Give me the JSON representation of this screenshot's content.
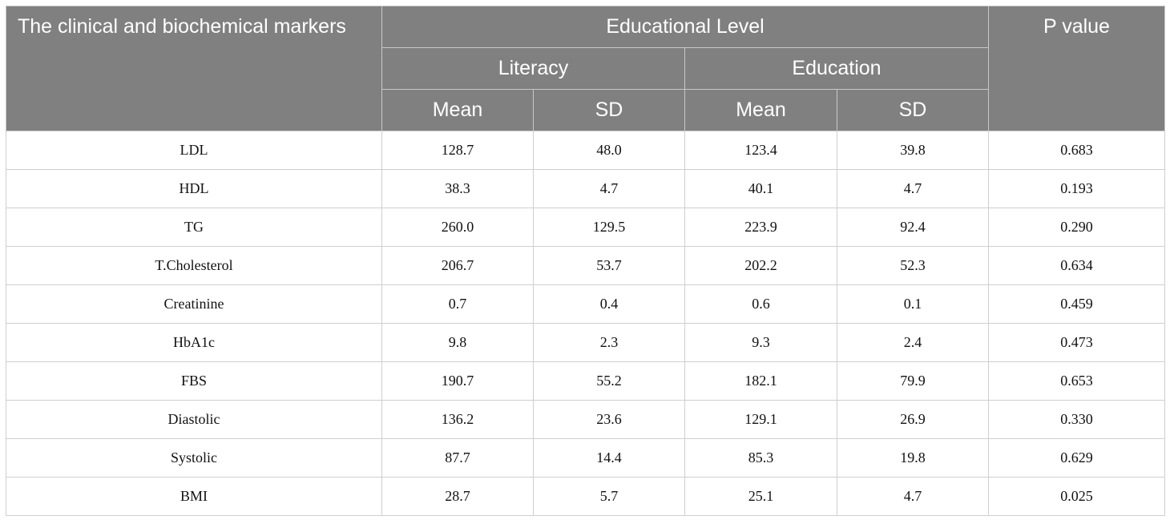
{
  "header": {
    "col_marker": "The clinical and biochemical markers",
    "group": "Educational Level",
    "col_pvalue": "P value",
    "sub_literacy": "Literacy",
    "sub_education": "Education",
    "mean": "Mean",
    "sd": "SD"
  },
  "rows": [
    {
      "marker": "LDL",
      "lit_mean": "128.7",
      "lit_sd": "48.0",
      "edu_mean": "123.4",
      "edu_sd": "39.8",
      "p": "0.683"
    },
    {
      "marker": "HDL",
      "lit_mean": "38.3",
      "lit_sd": "4.7",
      "edu_mean": "40.1",
      "edu_sd": "4.7",
      "p": "0.193"
    },
    {
      "marker": "TG",
      "lit_mean": "260.0",
      "lit_sd": "129.5",
      "edu_mean": "223.9",
      "edu_sd": "92.4",
      "p": "0.290"
    },
    {
      "marker": "T.Cholesterol",
      "lit_mean": "206.7",
      "lit_sd": "53.7",
      "edu_mean": "202.2",
      "edu_sd": "52.3",
      "p": "0.634"
    },
    {
      "marker": "Creatinine",
      "lit_mean": "0.7",
      "lit_sd": "0.4",
      "edu_mean": "0.6",
      "edu_sd": "0.1",
      "p": "0.459"
    },
    {
      "marker": "HbA1c",
      "lit_mean": "9.8",
      "lit_sd": "2.3",
      "edu_mean": "9.3",
      "edu_sd": "2.4",
      "p": "0.473"
    },
    {
      "marker": "FBS",
      "lit_mean": "190.7",
      "lit_sd": "55.2",
      "edu_mean": "182.1",
      "edu_sd": "79.9",
      "p": "0.653"
    },
    {
      "marker": "Diastolic",
      "lit_mean": "136.2",
      "lit_sd": "23.6",
      "edu_mean": "129.1",
      "edu_sd": "26.9",
      "p": "0.330"
    },
    {
      "marker": "Systolic",
      "lit_mean": "87.7",
      "lit_sd": "14.4",
      "edu_mean": "85.3",
      "edu_sd": "19.8",
      "p": "0.629"
    },
    {
      "marker": "BMI",
      "lit_mean": "28.7",
      "lit_sd": "5.7",
      "edu_mean": "25.1",
      "edu_sd": "4.7",
      "p": "0.025"
    }
  ],
  "colors": {
    "header_bg": "#7f807f",
    "header_text": "#ffffff",
    "grid": "#cfcfcf"
  }
}
